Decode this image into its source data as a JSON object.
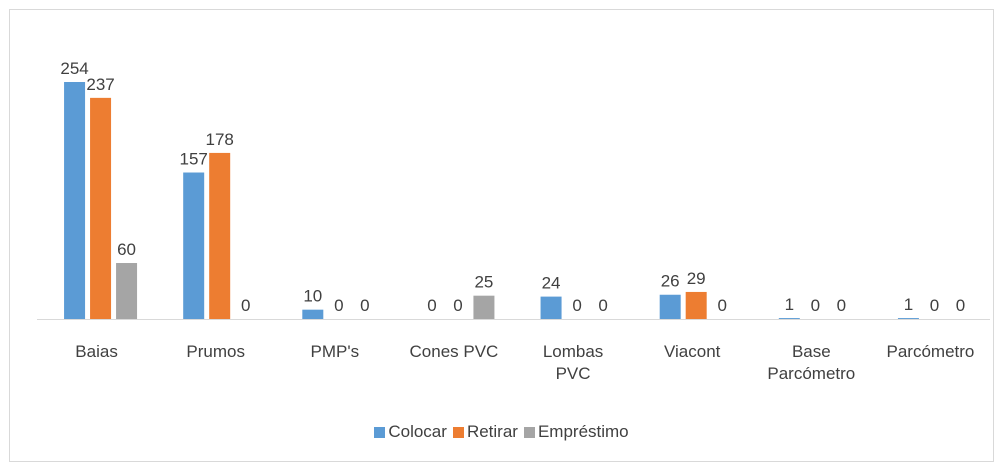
{
  "chart_data": {
    "type": "bar",
    "categories": [
      "Baias",
      "Prumos",
      "PMP's",
      "Cones PVC",
      "Lombas PVC",
      "Viacont",
      "Base Parcómetro",
      "Parcómetro"
    ],
    "series": [
      {
        "name": "Colocar",
        "color": "#5b9bd5",
        "values": [
          254,
          157,
          10,
          0,
          24,
          26,
          1,
          1
        ]
      },
      {
        "name": "Retirar",
        "color": "#ed7d31",
        "values": [
          237,
          178,
          0,
          0,
          0,
          29,
          0,
          0
        ]
      },
      {
        "name": "Empréstimo",
        "color": "#a5a5a5",
        "values": [
          60,
          0,
          0,
          25,
          0,
          0,
          0,
          0
        ]
      }
    ],
    "legend": "bottom"
  }
}
